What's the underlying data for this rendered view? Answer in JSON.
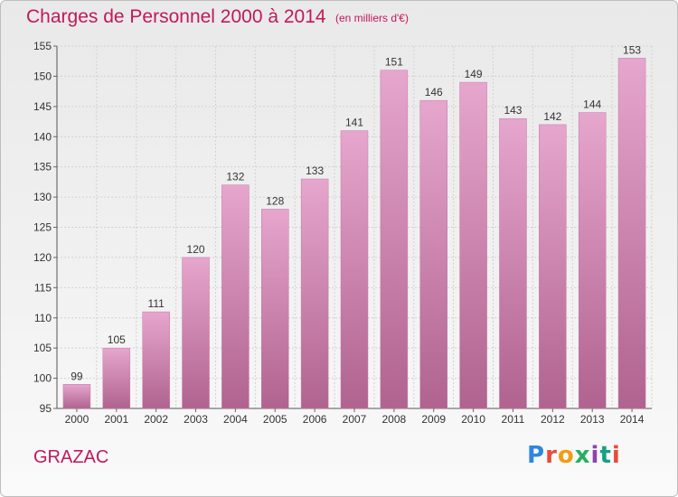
{
  "header": {
    "title": "Charges de Personnel 2000 à 2014",
    "subtitle": "(en milliers d'€)"
  },
  "footer": {
    "commune": "GRAZAC",
    "logo_text": "Proxiti"
  },
  "colors": {
    "accent": "#c2185b",
    "bar_top": "#e6a6cd",
    "bar_bottom": "#b0638f"
  },
  "chart_data": {
    "type": "bar",
    "title": "Charges de Personnel 2000 à 2014",
    "subtitle": "(en milliers d'€)",
    "categories": [
      "2000",
      "2001",
      "2002",
      "2003",
      "2004",
      "2005",
      "2006",
      "2007",
      "2008",
      "2009",
      "2010",
      "2011",
      "2012",
      "2013",
      "2014"
    ],
    "values": [
      99,
      105,
      111,
      120,
      132,
      128,
      133,
      141,
      151,
      146,
      149,
      143,
      142,
      144,
      153
    ],
    "ylim": [
      95,
      155
    ],
    "yticks": [
      95,
      100,
      105,
      110,
      115,
      120,
      125,
      130,
      135,
      140,
      145,
      150,
      155
    ],
    "grid": true,
    "legend": "none",
    "xlabel": "",
    "ylabel": ""
  }
}
